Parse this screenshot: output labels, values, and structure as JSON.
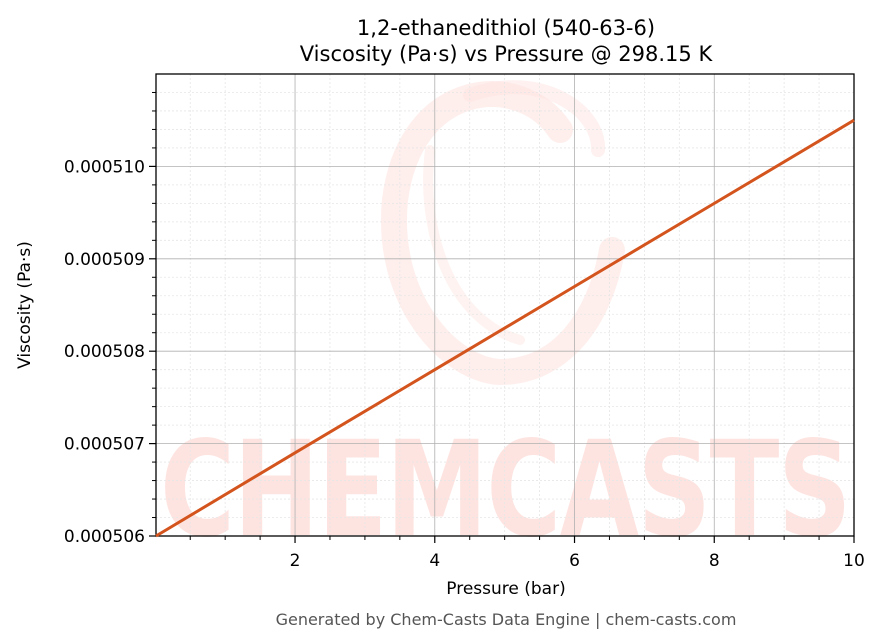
{
  "chart_data": {
    "type": "line",
    "title": "1,2-ethanedithiol (540-63-6)",
    "subtitle": "Viscosity (Pa·s) vs Pressure @ 298.15 K",
    "xlabel": "Pressure (bar)",
    "ylabel": "Viscosity (Pa·s)",
    "xlim": [
      0.01,
      10
    ],
    "ylim": [
      0.000506,
      0.000511
    ],
    "x_ticks": [
      {
        "value": 2,
        "label": "2"
      },
      {
        "value": 4,
        "label": "4"
      },
      {
        "value": 6,
        "label": "6"
      },
      {
        "value": 8,
        "label": "8"
      },
      {
        "value": 10,
        "label": "10"
      }
    ],
    "y_ticks": [
      {
        "value": 0.000506,
        "label": "0.000506"
      },
      {
        "value": 0.000507,
        "label": "0.000507"
      },
      {
        "value": 0.000508,
        "label": "0.000508"
      },
      {
        "value": 0.000509,
        "label": "0.000509"
      },
      {
        "value": 0.00051,
        "label": "0.000510"
      }
    ],
    "grid": true,
    "series": [
      {
        "color": "#d4541e",
        "x": [
          0.01,
          2,
          4,
          6,
          8,
          10
        ],
        "y": [
          0.000506,
          0.0005069,
          0.0005078,
          0.0005087,
          0.0005096,
          0.0005105
        ]
      }
    ]
  },
  "footer": "Generated by Chem-Casts Data Engine | chem-casts.com",
  "watermark": {
    "text": "CHEMCASTS",
    "color": "#fde4e1"
  }
}
